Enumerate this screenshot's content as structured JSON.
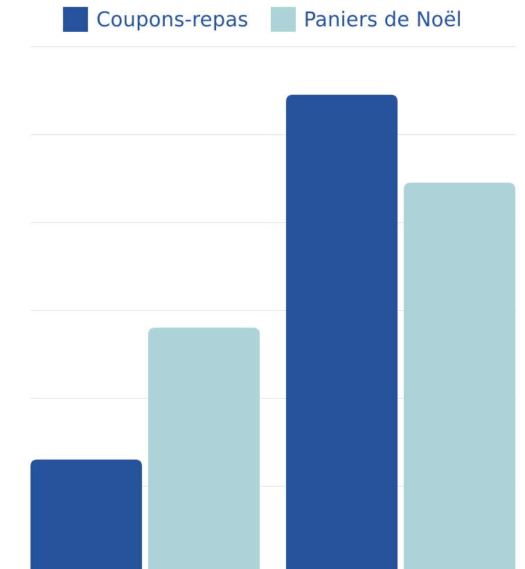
{
  "chart_data": {
    "type": "bar",
    "categories": [
      "",
      ""
    ],
    "series": [
      {
        "name": "Coupons-repas",
        "color": "#25529a",
        "values": [
          1.3,
          5.45
        ]
      },
      {
        "name": "Paniers de Noël",
        "color": "#acd3d5",
        "values": [
          2.8,
          4.45
        ]
      }
    ],
    "ylim": [
      0,
      6
    ],
    "grid": true,
    "legend_position": "top-center",
    "title": "",
    "xlabel": "",
    "ylabel": ""
  },
  "colors": {
    "grid": "#dcdfe3"
  }
}
